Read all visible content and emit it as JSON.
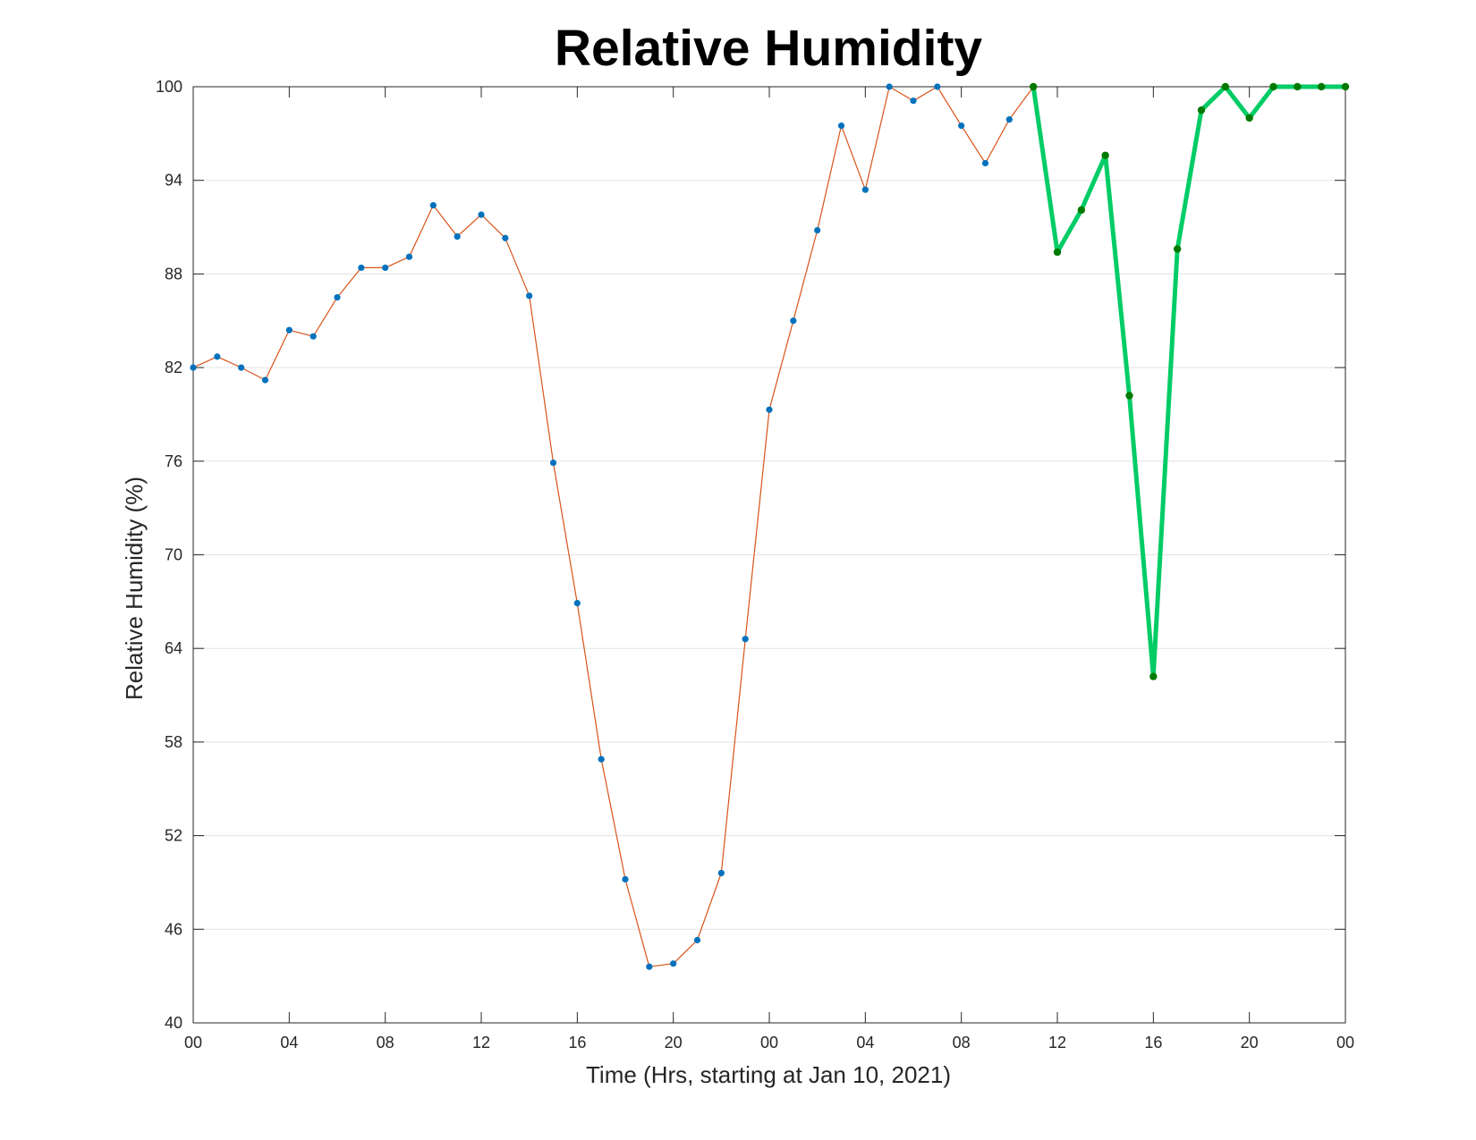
{
  "chart_data": {
    "type": "line",
    "title": "Relative Humidity",
    "xlabel": "Time (Hrs, starting at Jan 10, 2021)",
    "ylabel": "Relative Humidity (%)",
    "ylim": [
      40,
      100
    ],
    "yticks": [
      40,
      46,
      52,
      58,
      64,
      70,
      76,
      82,
      88,
      94,
      100
    ],
    "xlim": [
      "2021-01-10 00:00",
      "2021-01-12 00:00"
    ],
    "xticks": [
      {
        "x": "2021-01-10 00:00",
        "label": "00"
      },
      {
        "x": "2021-01-10 04:00",
        "label": "04"
      },
      {
        "x": "2021-01-10 08:00",
        "label": "08"
      },
      {
        "x": "2021-01-10 12:00",
        "label": "12"
      },
      {
        "x": "2021-01-10 16:00",
        "label": "16"
      },
      {
        "x": "2021-01-10 20:00",
        "label": "20"
      },
      {
        "x": "2021-01-11 00:00",
        "label": "00"
      },
      {
        "x": "2021-01-11 04:00",
        "label": "04"
      },
      {
        "x": "2021-01-11 08:00",
        "label": "08"
      },
      {
        "x": "2021-01-11 12:00",
        "label": "12"
      },
      {
        "x": "2021-01-11 16:00",
        "label": "16"
      },
      {
        "x": "2021-01-11 20:00",
        "label": "20"
      },
      {
        "x": "2021-01-12 00:00",
        "label": "00"
      }
    ],
    "grid": "horizontal",
    "series": [
      {
        "color": "#D95319",
        "marker_color": "#0072BD",
        "points": [
          {
            "x": "2021-01-10 00:00",
            "y": 82.0
          },
          {
            "x": "2021-01-10 01:00",
            "y": 82.7
          },
          {
            "x": "2021-01-10 02:00",
            "y": 82.0
          },
          {
            "x": "2021-01-10 03:00",
            "y": 81.2
          },
          {
            "x": "2021-01-10 04:00",
            "y": 84.4
          },
          {
            "x": "2021-01-10 05:00",
            "y": 84.0
          },
          {
            "x": "2021-01-10 06:00",
            "y": 86.5
          },
          {
            "x": "2021-01-10 07:00",
            "y": 88.4
          },
          {
            "x": "2021-01-10 08:00",
            "y": 88.4
          },
          {
            "x": "2021-01-10 09:00",
            "y": 89.1
          },
          {
            "x": "2021-01-10 10:00",
            "y": 92.4
          },
          {
            "x": "2021-01-10 11:00",
            "y": 90.4
          },
          {
            "x": "2021-01-10 12:00",
            "y": 91.8
          },
          {
            "x": "2021-01-10 13:00",
            "y": 90.3
          },
          {
            "x": "2021-01-10 14:00",
            "y": 86.6
          },
          {
            "x": "2021-01-10 15:00",
            "y": 75.9
          },
          {
            "x": "2021-01-10 16:00",
            "y": 66.9
          },
          {
            "x": "2021-01-10 17:00",
            "y": 56.9
          },
          {
            "x": "2021-01-10 18:00",
            "y": 49.2
          },
          {
            "x": "2021-01-10 19:00",
            "y": 43.6
          },
          {
            "x": "2021-01-10 20:00",
            "y": 43.8
          },
          {
            "x": "2021-01-10 21:00",
            "y": 45.3
          },
          {
            "x": "2021-01-10 22:00",
            "y": 49.6
          },
          {
            "x": "2021-01-10 23:00",
            "y": 64.6
          },
          {
            "x": "2021-01-11 00:00",
            "y": 79.3
          },
          {
            "x": "2021-01-11 01:00",
            "y": 85.0
          },
          {
            "x": "2021-01-11 02:00",
            "y": 90.8
          },
          {
            "x": "2021-01-11 03:00",
            "y": 97.5
          },
          {
            "x": "2021-01-11 04:00",
            "y": 93.4
          },
          {
            "x": "2021-01-11 05:00",
            "y": 100.0
          },
          {
            "x": "2021-01-11 06:00",
            "y": 99.1
          },
          {
            "x": "2021-01-11 07:00",
            "y": 100.0
          },
          {
            "x": "2021-01-11 08:00",
            "y": 97.5
          },
          {
            "x": "2021-01-11 09:00",
            "y": 95.1
          },
          {
            "x": "2021-01-11 10:00",
            "y": 97.9
          },
          {
            "x": "2021-01-11 11:00",
            "y": 100.0
          }
        ]
      },
      {
        "color": "#00CC66",
        "marker_color": "#007A00",
        "points": [
          {
            "x": "2021-01-11 11:00",
            "y": 100.0
          },
          {
            "x": "2021-01-11 12:00",
            "y": 89.4
          },
          {
            "x": "2021-01-11 13:00",
            "y": 92.1
          },
          {
            "x": "2021-01-11 14:00",
            "y": 95.6
          },
          {
            "x": "2021-01-11 15:00",
            "y": 80.2
          },
          {
            "x": "2021-01-11 16:00",
            "y": 62.2
          },
          {
            "x": "2021-01-11 17:00",
            "y": 89.6
          },
          {
            "x": "2021-01-11 18:00",
            "y": 98.5
          },
          {
            "x": "2021-01-11 19:00",
            "y": 100.0
          },
          {
            "x": "2021-01-11 20:00",
            "y": 98.0
          },
          {
            "x": "2021-01-11 21:00",
            "y": 100.0
          },
          {
            "x": "2021-01-11 22:00",
            "y": 100.0
          },
          {
            "x": "2021-01-11 23:00",
            "y": 100.0
          },
          {
            "x": "2021-01-12 00:00",
            "y": 100.0
          }
        ]
      }
    ]
  }
}
